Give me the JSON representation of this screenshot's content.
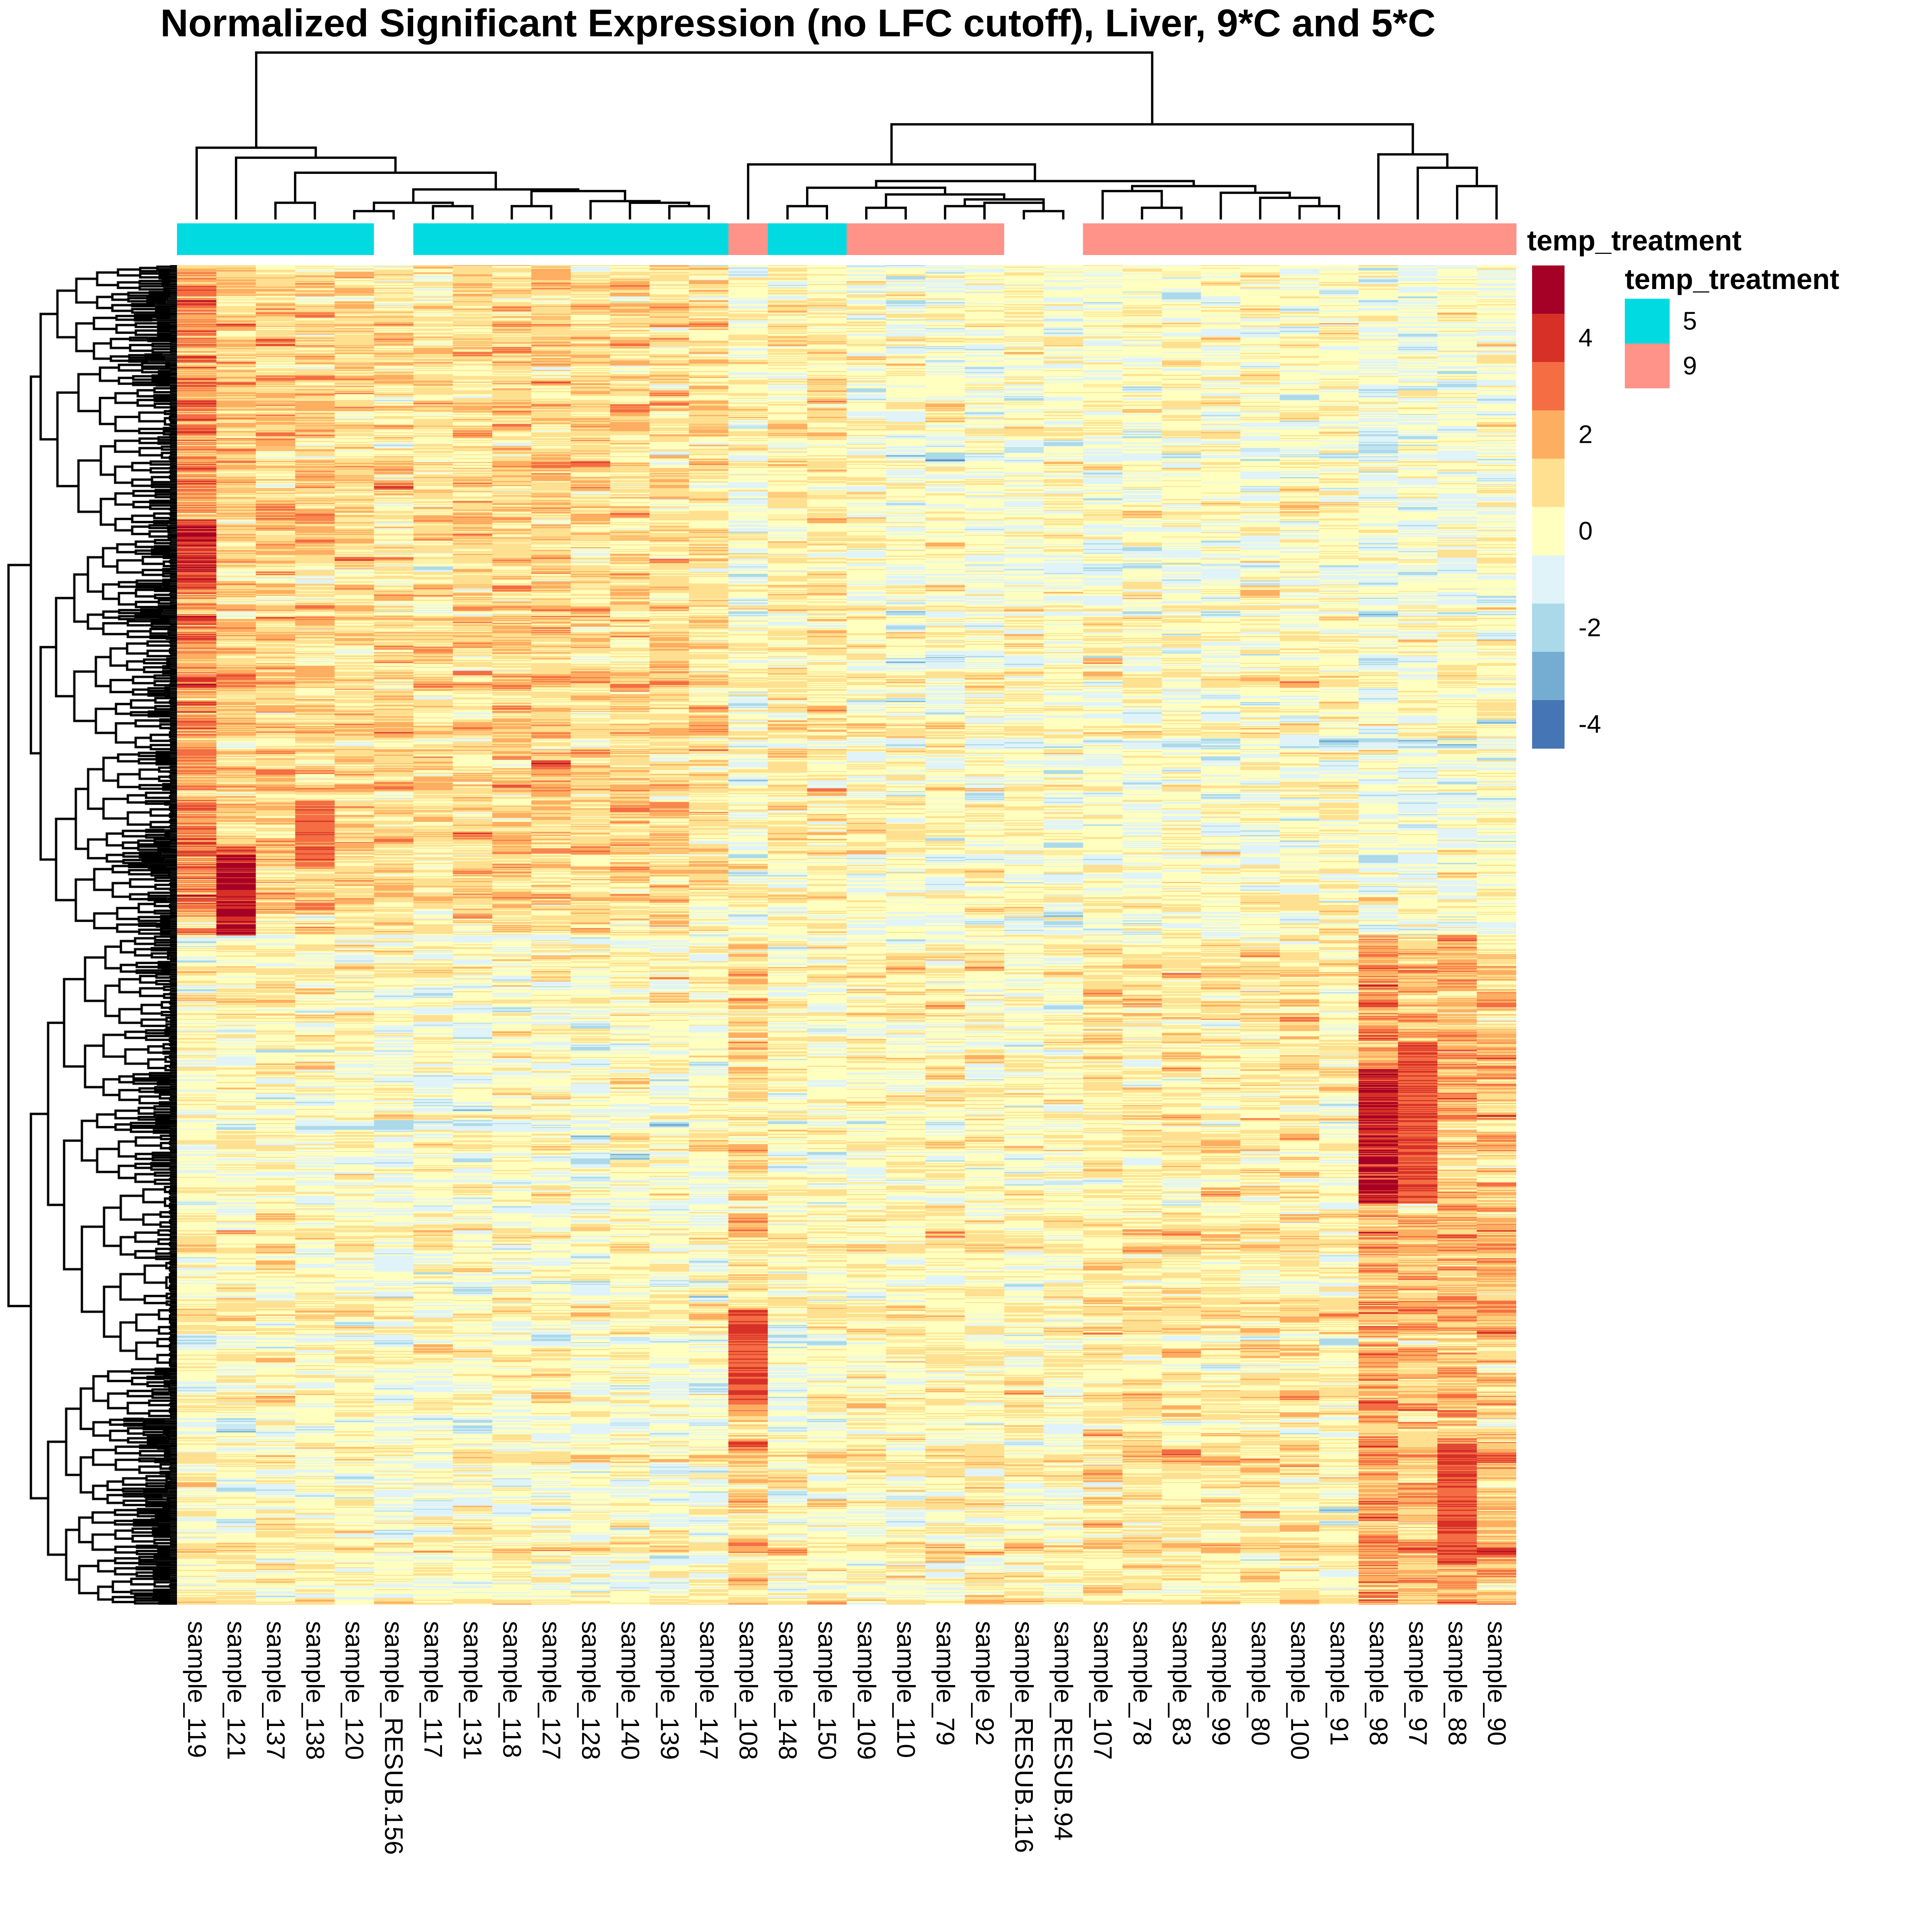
{
  "chart_data": {
    "type": "heatmap",
    "title": "Normalized Significant Expression (no LFC cutoff), Liver, 9*C and 5*C",
    "xlabel": "",
    "ylabel": "",
    "columns": [
      "sample_119",
      "sample_121",
      "sample_137",
      "sample_138",
      "sample_120",
      "sample_RESUB.156",
      "sample_117",
      "sample_131",
      "sample_118",
      "sample_127",
      "sample_128",
      "sample_140",
      "sample_139",
      "sample_147",
      "sample_108",
      "sample_148",
      "sample_150",
      "sample_109",
      "sample_110",
      "sample_79",
      "sample_92",
      "sample_RESUB.116",
      "sample_RESUB.94",
      "sample_107",
      "sample_78",
      "sample_83",
      "sample_99",
      "sample_80",
      "sample_100",
      "sample_91",
      "sample_98",
      "sample_97",
      "sample_88",
      "sample_90"
    ],
    "row_labels_shown": false,
    "row_count_approx": 1400,
    "annotation": {
      "name": "temp_treatment",
      "values": [
        "5",
        "5",
        "5",
        "5",
        "5",
        null,
        "5",
        "5",
        "5",
        "5",
        "5",
        "5",
        "5",
        "5",
        "9",
        "5",
        "5",
        "9",
        "9",
        "9",
        "9",
        null,
        null,
        "9",
        "9",
        "9",
        "9",
        "9",
        "9",
        "9",
        "9",
        "9",
        "9",
        "9"
      ],
      "legend": {
        "title": "temp_treatment",
        "levels": [
          {
            "label": "5",
            "color": "#00DAE0"
          },
          {
            "label": "9",
            "color": "#FF9289"
          }
        ]
      }
    },
    "color_scale": {
      "title": "",
      "breaks": [
        5.5,
        4.5,
        3.5,
        2.5,
        1.5,
        0.5,
        -0.5,
        -1.5,
        -2.5,
        -3.5,
        -4.5,
        -5.5
      ],
      "colors": [
        "#A50026",
        "#D73027",
        "#F46D43",
        "#FDAE61",
        "#FEE090",
        "#FFFFBF",
        "#E0F3F8",
        "#ABD9E9",
        "#74ADD1",
        "#4575B4",
        "#313695"
      ],
      "tick_labels": [
        "4",
        "2",
        "0",
        "-2",
        "-4"
      ],
      "tick_values": [
        4,
        2,
        0,
        -2,
        -4
      ],
      "range": [
        -5.5,
        5.5
      ]
    },
    "row_clusters": [
      {
        "name": "upper-block",
        "fraction": 0.5,
        "column_means": [
          2.4,
          1.3,
          1.2,
          1.3,
          1.1,
          1.0,
          0.9,
          1.0,
          1.2,
          1.2,
          1.0,
          1.1,
          1.0,
          0.9,
          -0.1,
          0.5,
          0.6,
          0.1,
          -0.1,
          0.0,
          0.0,
          0.0,
          -0.1,
          -0.1,
          0.0,
          0.0,
          -0.1,
          0.1,
          0.0,
          0.1,
          -0.4,
          -0.3,
          -0.2,
          0.0
        ]
      },
      {
        "name": "lower-block",
        "fraction": 0.5,
        "column_means": [
          0.1,
          0.1,
          0.2,
          0.1,
          0.1,
          -0.2,
          0.0,
          -0.1,
          0.0,
          0.0,
          -0.1,
          0.0,
          -0.1,
          0.0,
          1.0,
          0.0,
          0.1,
          0.3,
          0.2,
          0.4,
          0.3,
          0.2,
          0.2,
          0.6,
          0.6,
          0.5,
          0.6,
          0.6,
          0.6,
          0.3,
          2.1,
          1.6,
          1.8,
          1.5
        ]
      }
    ],
    "hotspots": [
      {
        "column": "sample_121",
        "row_range": [
          0.44,
          0.5
        ],
        "value": 5
      },
      {
        "column": "sample_119",
        "row_range": [
          0.19,
          0.24
        ],
        "value": 4.5
      },
      {
        "column": "sample_98",
        "row_range": [
          0.6,
          0.7
        ],
        "value": 5
      },
      {
        "column": "sample_97",
        "row_range": [
          0.58,
          0.7
        ],
        "value": 4
      },
      {
        "column": "sample_88",
        "row_range": [
          0.88,
          0.97
        ],
        "value": 4
      },
      {
        "column": "sample_108",
        "row_range": [
          0.78,
          0.85
        ],
        "value": 4
      },
      {
        "column": "sample_138",
        "row_range": [
          0.4,
          0.45
        ],
        "value": 3.5
      }
    ],
    "column_dendrogram": {
      "merges": [
        [
          [
            2
          ],
          [
            3
          ],
          0.1
        ],
        [
          [
            4
          ],
          [
            5
          ],
          0.05
        ],
        [
          [
            6
          ],
          [
            7
          ],
          0.08
        ],
        [
          [
            4,
            5
          ],
          [
            6,
            7
          ],
          0.1
        ],
        [
          [
            8
          ],
          [
            9
          ],
          0.08
        ],
        [
          [
            12
          ],
          [
            13
          ],
          0.08
        ],
        [
          [
            11
          ],
          [
            12,
            13
          ],
          0.1
        ],
        [
          [
            10
          ],
          [
            11,
            12,
            13
          ],
          0.11
        ],
        [
          [
            8,
            9
          ],
          [
            10,
            11,
            12,
            13
          ],
          0.17
        ],
        [
          [
            4,
            5,
            6,
            7
          ],
          [
            8,
            9,
            10,
            11,
            12,
            13
          ],
          0.18
        ],
        [
          [
            2,
            3
          ],
          [
            4,
            5,
            6,
            7,
            8,
            9,
            10,
            11,
            12,
            13
          ],
          0.28
        ],
        [
          [
            1
          ],
          [
            2,
            3,
            4,
            5,
            6,
            7,
            8,
            9,
            10,
            11,
            12,
            13
          ],
          0.37
        ],
        [
          [
            0
          ],
          [
            1,
            2,
            3,
            4,
            5,
            6,
            7,
            8,
            9,
            10,
            11,
            12,
            13
          ],
          0.43
        ],
        [
          [
            15
          ],
          [
            16
          ],
          0.08
        ],
        [
          [
            17
          ],
          [
            18
          ],
          0.07
        ],
        [
          [
            19
          ],
          [
            20
          ],
          0.08
        ],
        [
          [
            21
          ],
          [
            22
          ],
          0.05
        ],
        [
          [
            20
          ],
          [
            21,
            22
          ],
          0.1
        ],
        [
          [
            19,
            20
          ],
          [
            21,
            22
          ],
          0.12
        ],
        [
          [
            17,
            18
          ],
          [
            19,
            20,
            21,
            22
          ],
          0.15
        ],
        [
          [
            15,
            16
          ],
          [
            17,
            18,
            19,
            20,
            21,
            22
          ],
          0.19
        ],
        [
          [
            24
          ],
          [
            25
          ],
          0.07
        ],
        [
          [
            23
          ],
          [
            24,
            25
          ],
          0.17
        ],
        [
          [
            28
          ],
          [
            29
          ],
          0.08
        ],
        [
          [
            27
          ],
          [
            28,
            29
          ],
          0.13
        ],
        [
          [
            26
          ],
          [
            27,
            28,
            29
          ],
          0.16
        ],
        [
          [
            23,
            24,
            25
          ],
          [
            26,
            27,
            28,
            29
          ],
          0.2
        ],
        [
          [
            15,
            16,
            17,
            18,
            19,
            20,
            21,
            22
          ],
          [
            23,
            24,
            25,
            26,
            27,
            28,
            29
          ],
          0.23
        ],
        [
          [
            14
          ],
          [
            15,
            16,
            17,
            18,
            19,
            20,
            21,
            22,
            23,
            24,
            25,
            26,
            27,
            28,
            29
          ],
          0.33
        ],
        [
          [
            32
          ],
          [
            33
          ],
          0.2
        ],
        [
          [
            31
          ],
          [
            32,
            33
          ],
          0.31
        ],
        [
          [
            30
          ],
          [
            31,
            32,
            33
          ],
          0.39
        ],
        [
          [
            14,
            15,
            16,
            17,
            18,
            19,
            20,
            21,
            22,
            23,
            24,
            25,
            26,
            27,
            28,
            29
          ],
          [
            30,
            31,
            32,
            33
          ],
          0.57
        ],
        [
          [
            0,
            1,
            2,
            3,
            4,
            5,
            6,
            7,
            8,
            9,
            10,
            11,
            12,
            13
          ],
          [
            14,
            15,
            16,
            17,
            18,
            19,
            20,
            21,
            22,
            23,
            24,
            25,
            26,
            27,
            28,
            29,
            30,
            31,
            32,
            33
          ],
          1.0
        ]
      ]
    },
    "row_dendrogram": {
      "shown": true,
      "side": "left",
      "top_split_fraction": 0.5
    }
  },
  "legend": {
    "annotation_row_label": "temp_treatment",
    "annotation_legend_title": "temp_treatment"
  }
}
